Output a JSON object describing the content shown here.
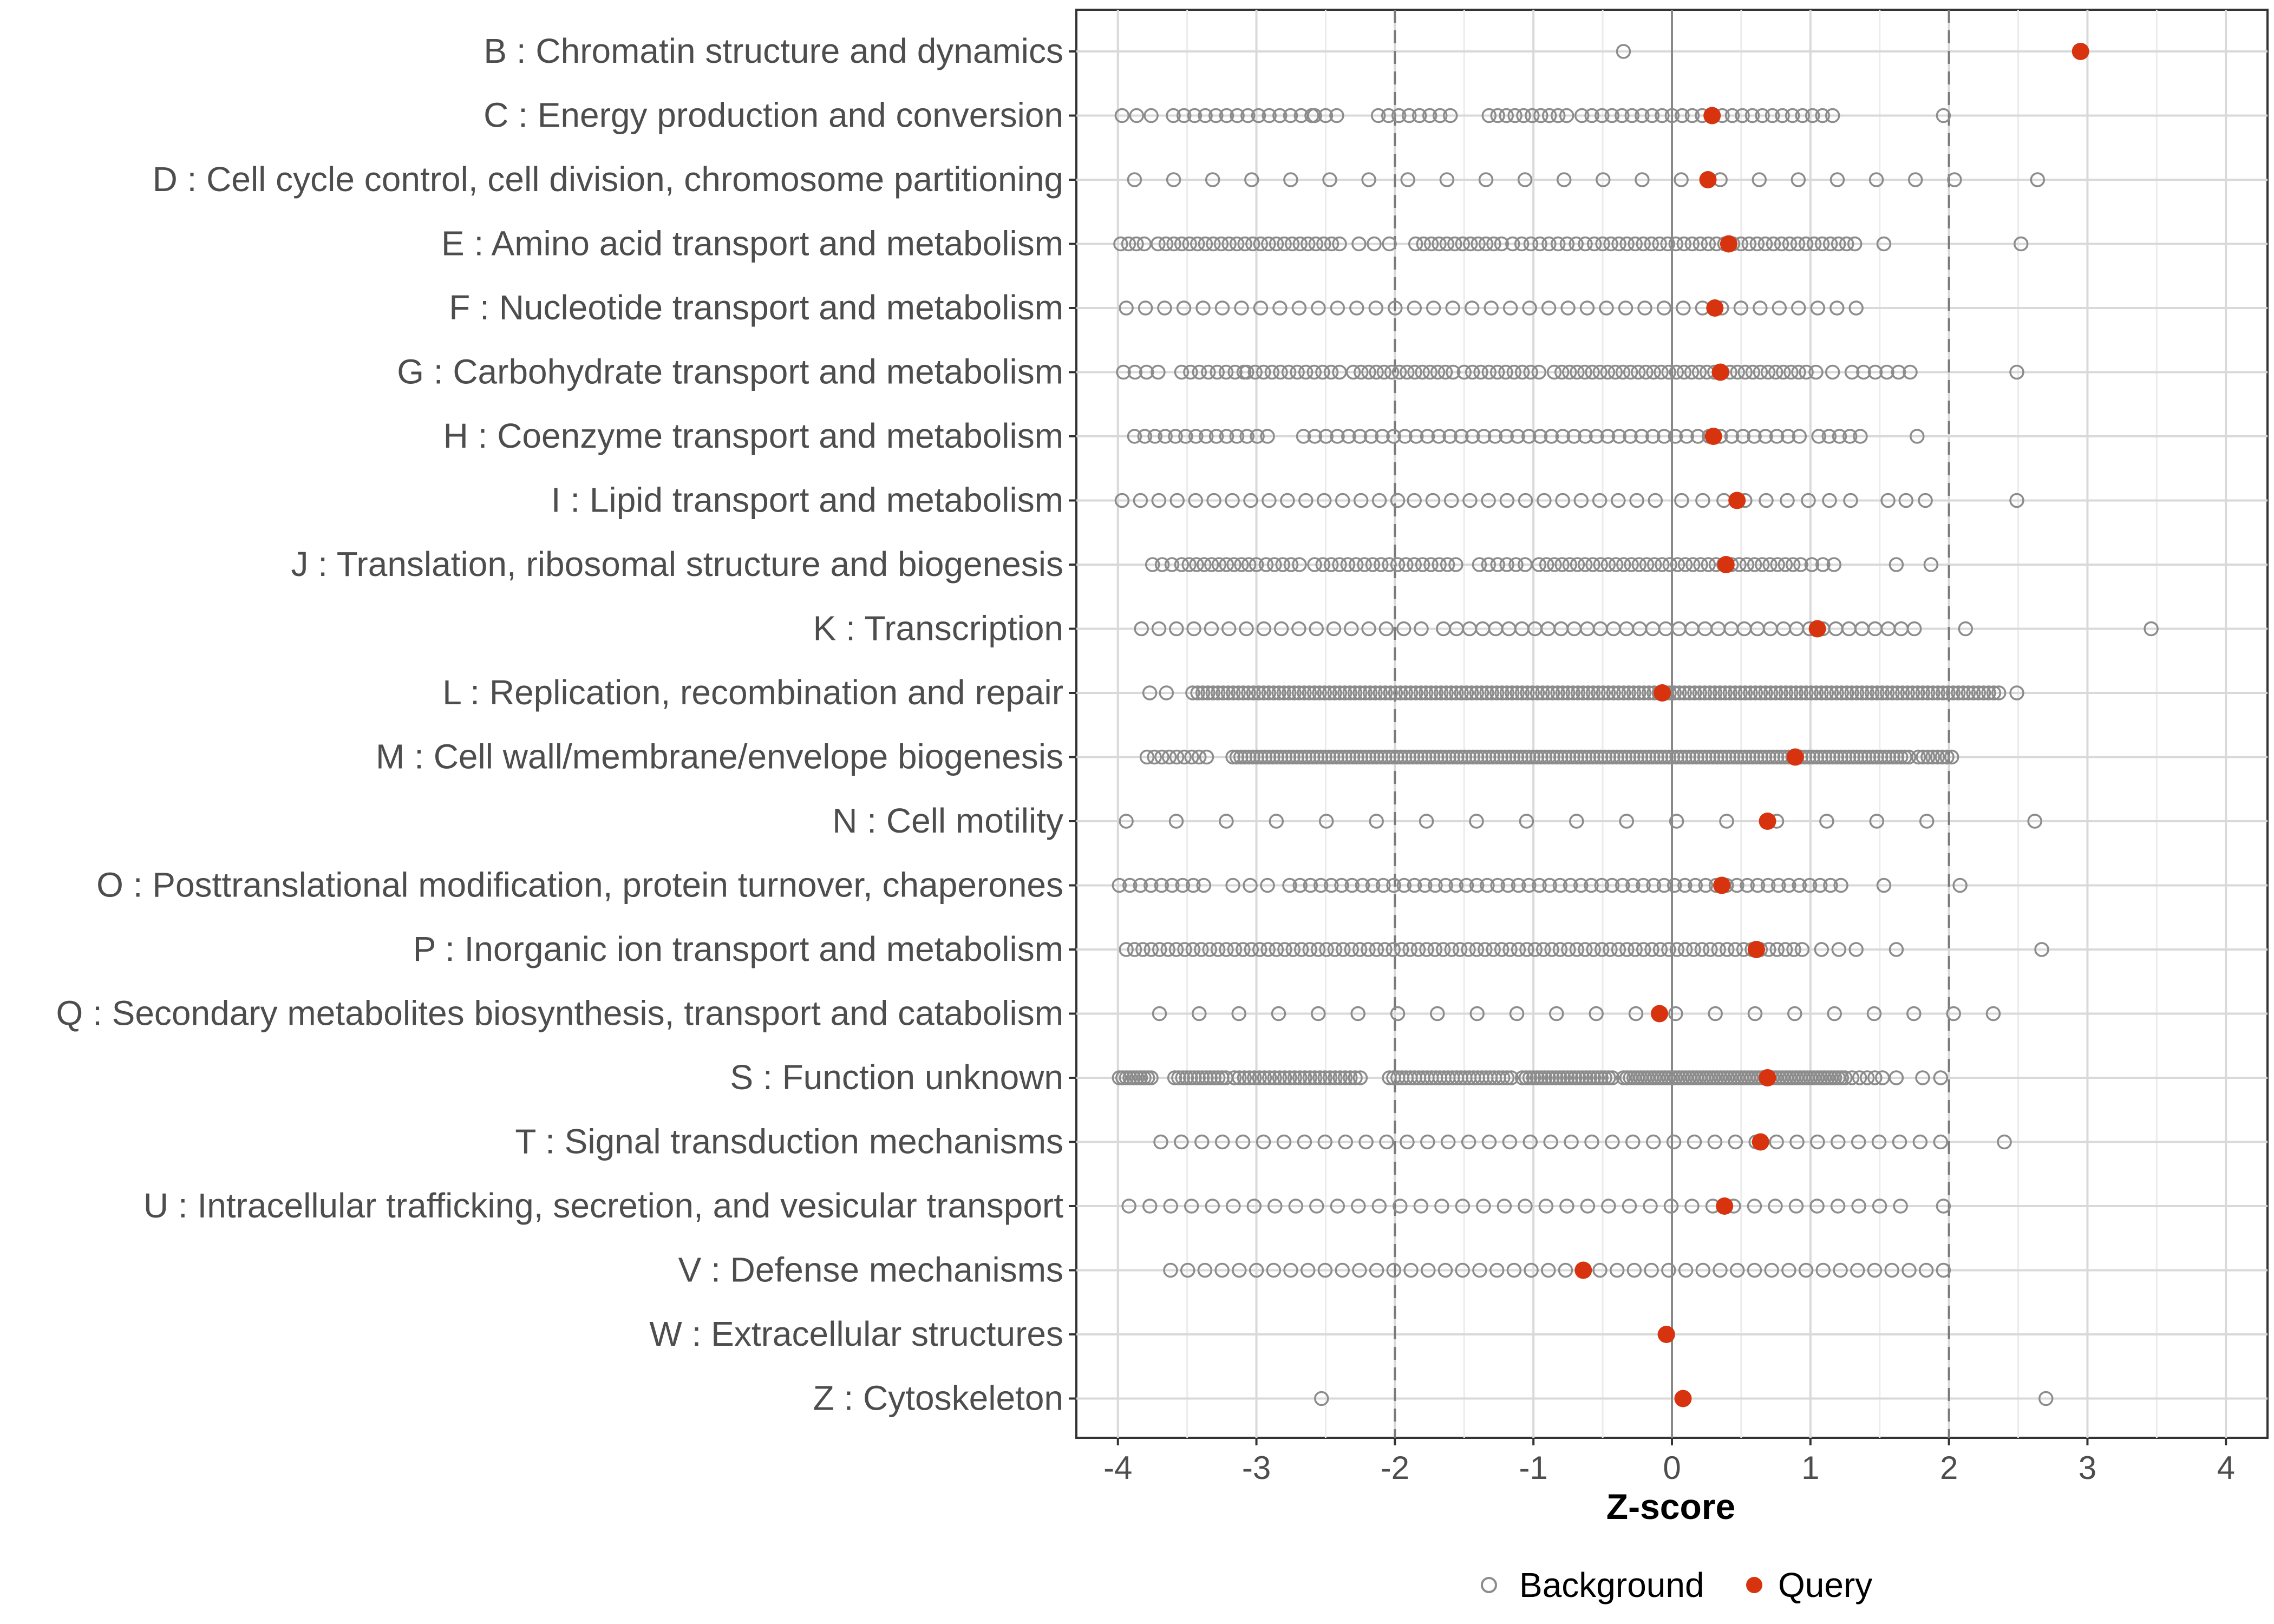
{
  "chart_data": {
    "type": "scatter",
    "title": "",
    "xlabel": "Z-score",
    "ylabel": "",
    "xlim": [
      -4.3,
      4.3
    ],
    "xticks": [
      -4,
      -3,
      -2,
      -1,
      0,
      1,
      2,
      3,
      4
    ],
    "xtick_labels": [
      "-4",
      "-3",
      "-2",
      "-1",
      "0",
      "1",
      "2",
      "3",
      "4"
    ],
    "reference_lines": {
      "zero": 0,
      "dashed": [
        -2,
        2
      ]
    },
    "grid": true,
    "legend": {
      "position": "bottom",
      "entries": [
        {
          "label": "Background",
          "marker": "open-circle",
          "color": "#8c8c8c"
        },
        {
          "label": "Query",
          "marker": "filled-circle",
          "color": "#d7330f"
        }
      ]
    },
    "categories": [
      "B : Chromatin structure and dynamics",
      "C : Energy production and conversion",
      "D : Cell cycle control, cell division, chromosome partitioning",
      "E : Amino acid transport and metabolism",
      "F : Nucleotide transport and metabolism",
      "G : Carbohydrate transport and metabolism",
      "H : Coenzyme transport and metabolism",
      "I : Lipid transport and metabolism",
      "J : Translation, ribosomal structure and biogenesis",
      "K : Transcription",
      "L : Replication, recombination and repair",
      "M : Cell wall/membrane/envelope biogenesis",
      "N : Cell motility",
      "O : Posttranslational modification, protein turnover, chaperones",
      "P : Inorganic ion transport and metabolism",
      "Q : Secondary metabolites biosynthesis, transport and catabolism",
      "S : Function unknown",
      "T : Signal transduction mechanisms",
      "U : Intracellular trafficking, secretion, and vesicular transport",
      "V : Defense mechanisms",
      "W : Extracellular structures",
      "Z : Cytoskeleton"
    ],
    "series": [
      {
        "name": "Query",
        "values": [
          2.95,
          0.29,
          0.26,
          0.41,
          0.31,
          0.35,
          0.3,
          0.47,
          0.39,
          1.05,
          -0.07,
          0.89,
          0.69,
          0.36,
          0.61,
          -0.09,
          0.69,
          0.64,
          0.38,
          -0.64,
          -0.04,
          0.08
        ]
      },
      {
        "name": "Background",
        "points": [
          {
            "category": "B : Chromatin structure and dynamics",
            "x": [
              -0.35
            ]
          },
          {
            "category": "C : Energy production and conversion",
            "ranges": [
              {
                "from": -3.97,
                "to": -3.76,
                "n": 3
              },
              {
                "from": -3.6,
                "to": -2.6,
                "n": 14
              },
              {
                "from": -2.58,
                "to": -2.42,
                "n": 3
              },
              {
                "from": -2.12,
                "to": -1.6,
                "n": 8
              },
              {
                "from": -1.32,
                "to": -0.76,
                "n": 10
              },
              {
                "from": -0.65,
                "to": 1.16,
                "n": 26
              }
            ],
            "x": [
              1.96
            ]
          },
          {
            "category": "D : Cell cycle control, cell division, chromosome partitioning",
            "ranges": [
              {
                "from": -3.88,
                "to": 2.04,
                "n": 22
              }
            ],
            "x": [
              2.64
            ]
          },
          {
            "category": "E : Amino acid transport and metabolism",
            "ranges": [
              {
                "from": -3.98,
                "to": -3.81,
                "n": 4
              },
              {
                "from": -3.71,
                "to": -2.4,
                "n": 24
              },
              {
                "from": -2.26,
                "to": -2.04,
                "n": 3
              },
              {
                "from": -1.85,
                "to": -1.23,
                "n": 12
              },
              {
                "from": -1.15,
                "to": -0.56,
                "n": 10
              },
              {
                "from": -0.5,
                "to": 1.32,
                "n": 32
              }
            ],
            "x": [
              1.53,
              2.52
            ]
          },
          {
            "category": "F : Nucleotide transport and metabolism",
            "ranges": [
              {
                "from": -3.94,
                "to": 1.33,
                "n": 39
              }
            ]
          },
          {
            "category": "G : Carbohydrate transport and metabolism",
            "ranges": [
              {
                "from": -3.96,
                "to": -3.71,
                "n": 4
              },
              {
                "from": -3.54,
                "to": -3.09,
                "n": 8
              },
              {
                "from": -3.07,
                "to": -2.4,
                "n": 12
              },
              {
                "from": -2.3,
                "to": -1.58,
                "n": 14
              },
              {
                "from": -1.5,
                "to": -0.96,
                "n": 10
              },
              {
                "from": -0.85,
                "to": 0.97,
                "n": 34
              },
              {
                "from": 1.04,
                "to": 1.16,
                "n": 2
              },
              {
                "from": 1.3,
                "to": 1.72,
                "n": 6
              }
            ],
            "x": [
              2.49
            ]
          },
          {
            "category": "H : Coenzyme transport and metabolism",
            "ranges": [
              {
                "from": -3.88,
                "to": -2.92,
                "n": 14
              },
              {
                "from": -2.66,
                "to": 0.92,
                "n": 45
              },
              {
                "from": 1.06,
                "to": 1.36,
                "n": 5
              }
            ],
            "x": [
              1.77
            ]
          },
          {
            "category": "I : Lipid transport and metabolism",
            "ranges": [
              {
                "from": -3.97,
                "to": -1.98,
                "n": 16
              },
              {
                "from": -1.86,
                "to": -0.12,
                "n": 14
              },
              {
                "from": 0.07,
                "to": 1.29,
                "n": 9
              }
            ],
            "x": [
              1.56,
              1.69,
              1.83,
              2.49
            ]
          },
          {
            "category": "J : Translation, ribosomal structure and biogenesis",
            "ranges": [
              {
                "from": -3.75,
                "to": -3.61,
                "n": 3
              },
              {
                "from": -3.54,
                "to": -3.0,
                "n": 11
              },
              {
                "from": -2.93,
                "to": -2.69,
                "n": 5
              },
              {
                "from": -2.58,
                "to": -1.56,
                "n": 18
              },
              {
                "from": -1.39,
                "to": -1.06,
                "n": 6
              },
              {
                "from": -0.96,
                "to": 0.93,
                "n": 35
              },
              {
                "from": 1.01,
                "to": 1.17,
                "n": 3
              }
            ],
            "x": [
              1.62,
              1.87
            ]
          },
          {
            "category": "K : Transcription",
            "ranges": [
              {
                "from": -3.83,
                "to": -1.81,
                "n": 17
              },
              {
                "from": -1.65,
                "to": 1.75,
                "n": 37
              }
            ],
            "x": [
              2.12,
              3.46
            ]
          },
          {
            "category": "L : Replication, recombination and repair",
            "ranges": [
              {
                "from": -3.77,
                "to": -3.65,
                "n": 2
              },
              {
                "from": -3.46,
                "to": 2.36,
                "n": 160
              }
            ],
            "x": [
              2.49
            ]
          },
          {
            "category": "M : Cell wall/membrane/envelope biogenesis",
            "ranges": [
              {
                "from": -3.79,
                "to": -3.36,
                "n": 9
              },
              {
                "from": -3.17,
                "to": 1.71,
                "n": 170
              },
              {
                "from": 1.78,
                "to": 2.02,
                "n": 8
              }
            ]
          },
          {
            "category": "N : Cell motility",
            "ranges": [
              {
                "from": -3.94,
                "to": 1.84,
                "n": 17
              }
            ],
            "x": [
              2.62
            ]
          },
          {
            "category": "O : Posttranslational modification, protein turnover, chaperones",
            "ranges": [
              {
                "from": -3.99,
                "to": -3.38,
                "n": 9
              },
              {
                "from": -3.17,
                "to": -2.92,
                "n": 3
              },
              {
                "from": -2.76,
                "to": 1.22,
                "n": 54
              }
            ],
            "x": [
              1.53,
              2.08
            ]
          },
          {
            "category": "P : Inorganic ion transport and metabolism",
            "ranges": [
              {
                "from": -3.94,
                "to": 0.94,
                "n": 82
              },
              {
                "from": 1.08,
                "to": 1.33,
                "n": 3
              }
            ],
            "x": [
              1.62,
              2.67
            ]
          },
          {
            "category": "Q : Secondary metabolites biosynthesis, transport and catabolism",
            "ranges": [
              {
                "from": -3.7,
                "to": 2.32,
                "n": 22
              }
            ]
          },
          {
            "category": "S : Function unknown",
            "ranges": [
              {
                "from": -3.99,
                "to": -3.76,
                "n": 10
              },
              {
                "from": -3.59,
                "to": -3.22,
                "n": 14
              },
              {
                "from": -3.16,
                "to": -2.25,
                "n": 26
              },
              {
                "from": -2.04,
                "to": -1.16,
                "n": 30
              },
              {
                "from": -1.08,
                "to": -0.43,
                "n": 25
              },
              {
                "from": -0.35,
                "to": 1.25,
                "n": 65
              },
              {
                "from": 1.3,
                "to": 1.52,
                "n": 5
              }
            ],
            "x": [
              1.62,
              1.81,
              1.94
            ]
          },
          {
            "category": "T : Signal transduction mechanisms",
            "ranges": [
              {
                "from": -3.69,
                "to": 1.94,
                "n": 39
              }
            ],
            "x": [
              2.4
            ]
          },
          {
            "category": "U : Intracellular trafficking, secretion, and vesicular transport",
            "ranges": [
              {
                "from": -3.92,
                "to": 1.65,
                "n": 38
              }
            ],
            "x": [
              1.96
            ]
          },
          {
            "category": "V : Defense mechanisms",
            "ranges": [
              {
                "from": -3.62,
                "to": 1.96,
                "n": 46
              }
            ]
          },
          {
            "category": "W : Extracellular structures",
            "x": [
              -0.05
            ]
          },
          {
            "category": "Z : Cytoskeleton",
            "x": [
              -2.53,
              2.7
            ]
          }
        ]
      }
    ]
  }
}
